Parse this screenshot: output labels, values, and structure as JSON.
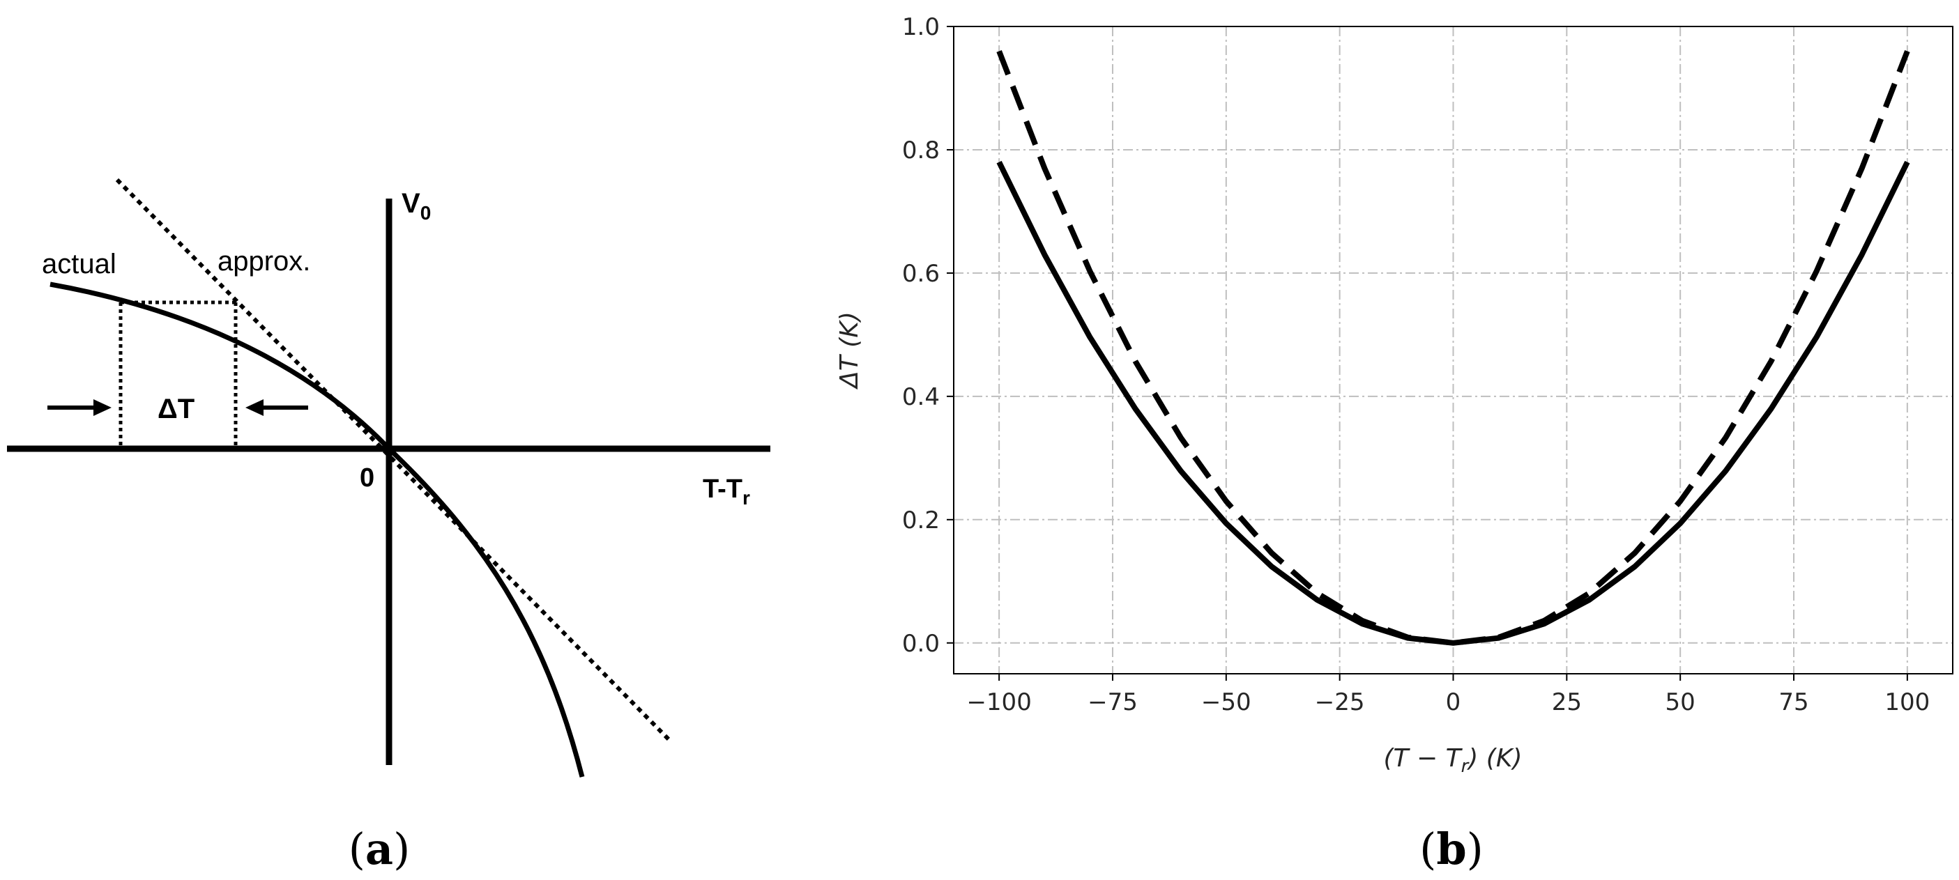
{
  "panel_a": {
    "caption_open": "(",
    "caption_letter": "a",
    "caption_close": ")",
    "label_actual": "actual",
    "label_approx": "approx.",
    "label_delta_t": "ΔT",
    "axis_y_main": "V",
    "axis_y_sub": "0",
    "axis_x_main": "T-T",
    "axis_x_sub": "r",
    "origin_label": "0"
  },
  "panel_b": {
    "caption_open": "(",
    "caption_letter": "b",
    "caption_close": ")"
  },
  "chart_data": {
    "type": "line",
    "xlabel": "(T − T",
    "xlabel_sub": "r",
    "xlabel_tail": ") (K)",
    "ylabel": "ΔT (K)",
    "xlim": [
      -110,
      110
    ],
    "ylim": [
      -0.05,
      1.0
    ],
    "xticks": [
      -100,
      -75,
      -50,
      -25,
      0,
      25,
      50,
      75,
      100
    ],
    "xtick_labels": [
      "−100",
      "−75",
      "−50",
      "−25",
      "0",
      "25",
      "50",
      "75",
      "100"
    ],
    "yticks": [
      0.0,
      0.2,
      0.4,
      0.6,
      0.8,
      1.0
    ],
    "ytick_labels": [
      "0.0",
      "0.2",
      "0.4",
      "0.6",
      "0.8",
      "1.0"
    ],
    "grid": true,
    "series": [
      {
        "style": "solid",
        "color": "#000000",
        "x": [
          -100,
          -90,
          -80,
          -70,
          -60,
          -50,
          -40,
          -30,
          -20,
          -10,
          0,
          10,
          20,
          30,
          40,
          50,
          60,
          70,
          80,
          90,
          100
        ],
        "y": [
          0.78,
          0.63,
          0.496,
          0.38,
          0.279,
          0.194,
          0.124,
          0.07,
          0.031,
          0.008,
          0.0,
          0.008,
          0.031,
          0.07,
          0.124,
          0.194,
          0.279,
          0.38,
          0.496,
          0.63,
          0.78
        ]
      },
      {
        "style": "dashed",
        "color": "#000000",
        "x": [
          -100,
          -90,
          -80,
          -70,
          -60,
          -50,
          -40,
          -30,
          -20,
          -10,
          0,
          10,
          20,
          30,
          40,
          50,
          60,
          70,
          80,
          90,
          100
        ],
        "y": [
          0.96,
          0.77,
          0.603,
          0.457,
          0.333,
          0.23,
          0.146,
          0.081,
          0.036,
          0.009,
          0.0,
          0.009,
          0.036,
          0.081,
          0.146,
          0.23,
          0.333,
          0.457,
          0.603,
          0.77,
          0.96
        ]
      }
    ]
  },
  "colors": {
    "ink": "#000000",
    "grid": "#bfbfbf",
    "tick_text": "#262626",
    "background": "#ffffff"
  }
}
